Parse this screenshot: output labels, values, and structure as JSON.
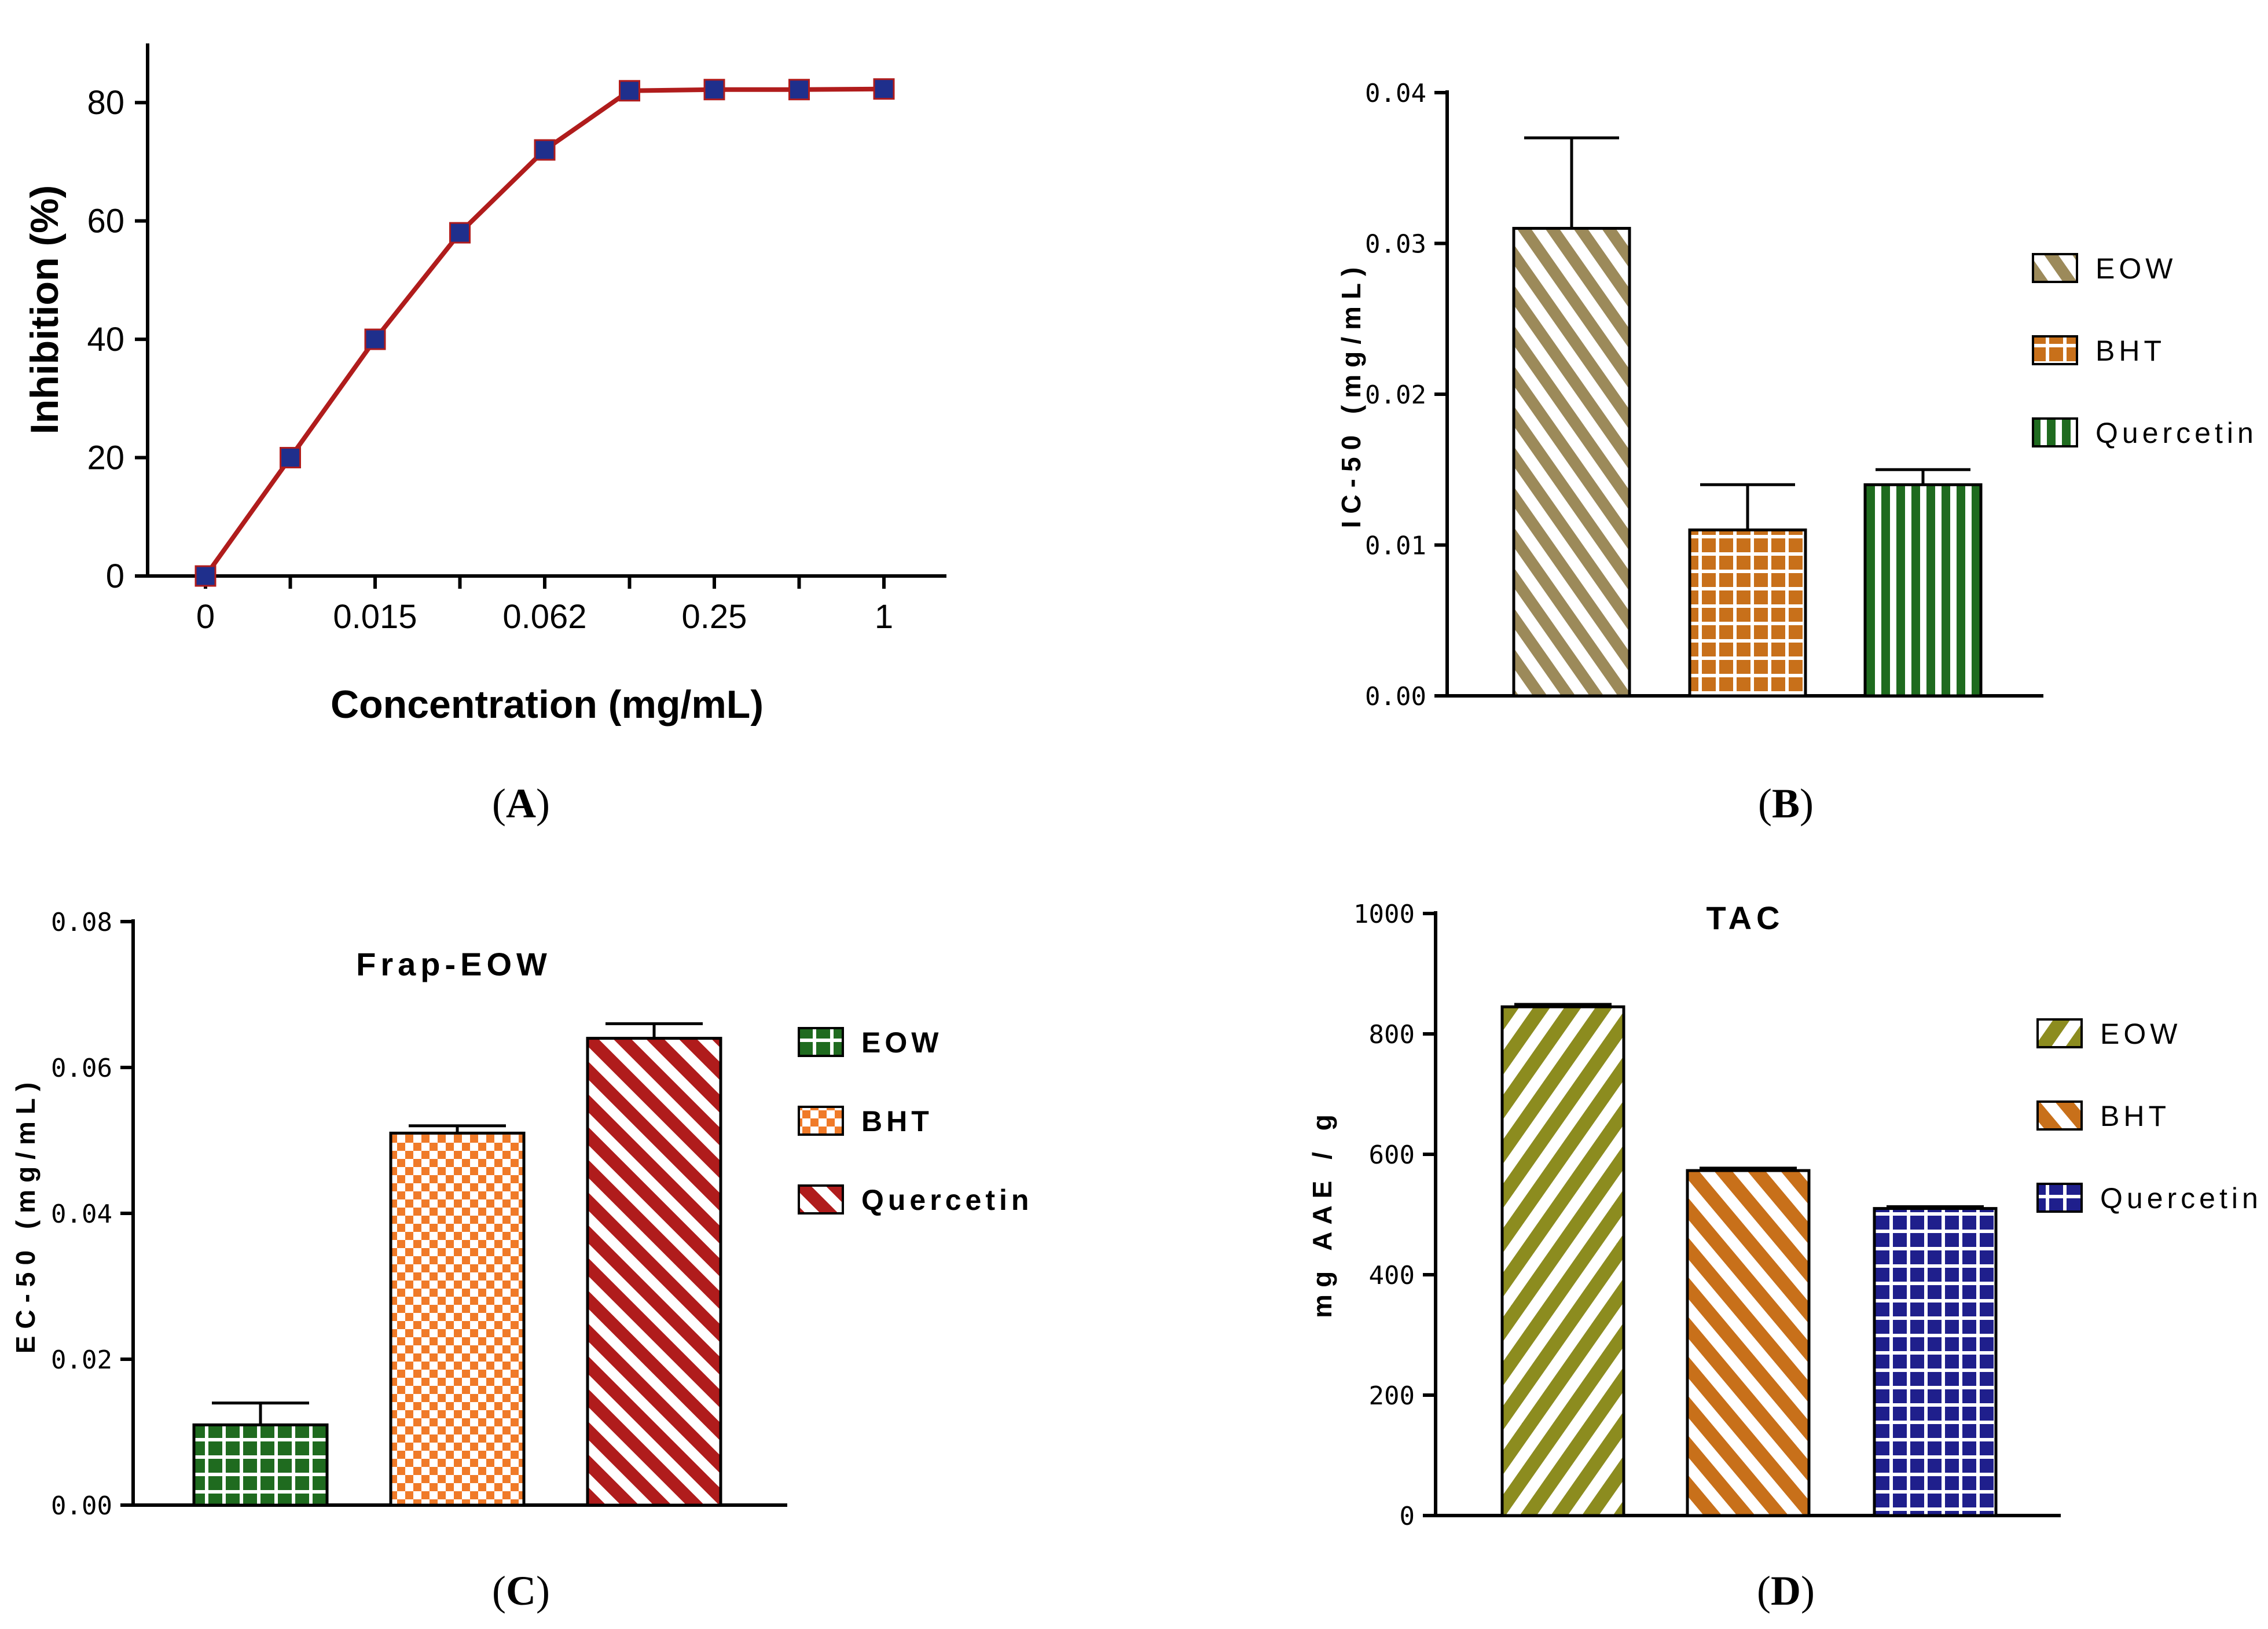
{
  "chart_data": [
    {
      "panel": "A",
      "type": "line",
      "xlabel": "Concentration (mg/mL)",
      "ylabel": "Inhibition (%)",
      "tick_labels_x": [
        "0",
        "0.015",
        "0.062",
        "0.25",
        "1"
      ],
      "tick_values_y": [
        0,
        20,
        40,
        60,
        80
      ],
      "ylim": [
        0,
        90
      ],
      "series": [
        {
          "name": "Inhibition",
          "color": "#b01c1c",
          "marker_color": "#1f2f8c",
          "x_index": [
            0,
            1,
            2,
            3,
            4,
            5,
            6,
            7,
            8
          ],
          "values": [
            0,
            20,
            40,
            58,
            72,
            82,
            82.2,
            82.2,
            82.3
          ]
        }
      ]
    },
    {
      "panel": "B",
      "type": "bar",
      "title": "",
      "ylabel": "IC-50 (mg/mL)",
      "categories": [
        "EOW",
        "BHT",
        "Quercetin"
      ],
      "values": [
        0.031,
        0.011,
        0.014
      ],
      "errors": [
        0.006,
        0.003,
        0.001
      ],
      "ylim": [
        0,
        0.04
      ],
      "ticks": [
        0.0,
        0.01,
        0.02,
        0.03,
        0.04
      ],
      "tick_labels": [
        "0.00",
        "0.01",
        "0.02",
        "0.03",
        "0.04"
      ],
      "colors": [
        "#9c8a5a",
        "#c8701a",
        "#1f6b1f"
      ],
      "patterns": [
        "diag",
        "grid",
        "vert"
      ],
      "legend": [
        "EOW",
        "BHT",
        "Quercetin"
      ]
    },
    {
      "panel": "C",
      "type": "bar",
      "title": "Frap-EOW",
      "ylabel": "EC-50 (mg/mL)",
      "categories": [
        "EOW",
        "BHT",
        "Quercetin"
      ],
      "values": [
        0.011,
        0.051,
        0.064
      ],
      "errors": [
        0.003,
        0.001,
        0.002
      ],
      "ylim": [
        0,
        0.08
      ],
      "ticks": [
        0.0,
        0.02,
        0.04,
        0.06,
        0.08
      ],
      "tick_labels": [
        "0.00",
        "0.02",
        "0.04",
        "0.06",
        "0.08"
      ],
      "colors": [
        "#1f6b1f",
        "#f07a28",
        "#b01c1c"
      ],
      "patterns": [
        "grid",
        "check",
        "diag"
      ],
      "legend": [
        "EOW",
        "BHT",
        "Quercetin"
      ]
    },
    {
      "panel": "D",
      "type": "bar",
      "title": "TAC",
      "ylabel": "mg AAE / g",
      "categories": [
        "EOW",
        "BHT",
        "Quercetin"
      ],
      "values": [
        845,
        573,
        510
      ],
      "errors": [
        4,
        4,
        3
      ],
      "ylim": [
        0,
        1000
      ],
      "ticks": [
        0,
        200,
        400,
        600,
        800,
        1000
      ],
      "tick_labels": [
        "0",
        "200",
        "400",
        "600",
        "800",
        "1000"
      ],
      "colors": [
        "#8c8c1f",
        "#c8701a",
        "#1f1f8c"
      ],
      "patterns": [
        "diag",
        "diag",
        "grid"
      ],
      "legend": [
        "EOW",
        "BHT",
        "Quercetin"
      ]
    }
  ],
  "panel_labels": [
    "A",
    "B",
    "C",
    "D"
  ]
}
